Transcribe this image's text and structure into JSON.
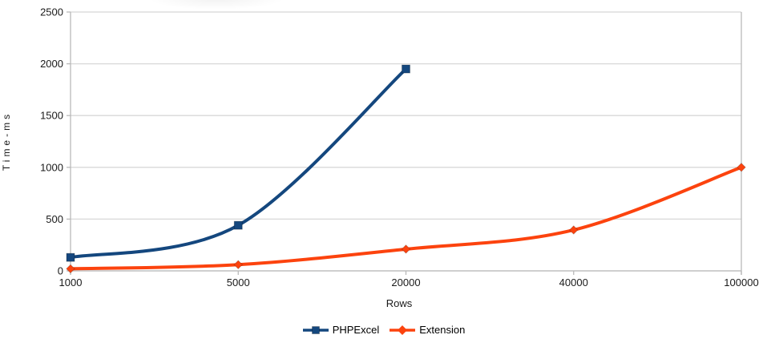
{
  "chart_data": {
    "type": "line",
    "title": "",
    "xlabel": "Rows",
    "ylabel": "Time-ms",
    "categories": [
      "1000",
      "5000",
      "20000",
      "40000",
      "100000"
    ],
    "series": [
      {
        "name": "PHPExcel",
        "color": "#14477E",
        "marker": "square",
        "values": [
          130,
          440,
          1950,
          null,
          null
        ]
      },
      {
        "name": "Extension",
        "color": "#FC430E",
        "marker": "diamond",
        "values": [
          20,
          60,
          210,
          395,
          1000
        ]
      }
    ],
    "ylim": [
      0,
      2500
    ],
    "ytick_step": 500,
    "grid": "horizontal",
    "smooth_lines": true,
    "legend_position": "bottom-center",
    "grid_color": "#d8d8d8",
    "axis_color": "#b9b9b9",
    "text_color": "#1a1a1a"
  }
}
